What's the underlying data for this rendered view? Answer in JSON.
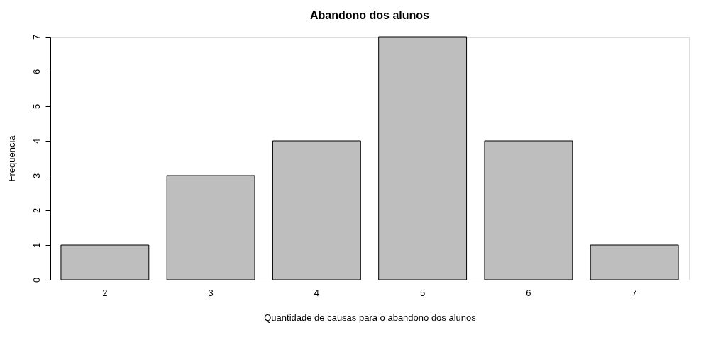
{
  "chart_data": {
    "type": "bar",
    "title": "Abandono dos alunos",
    "xlabel": "Quantidade de causas para o abandono dos alunos",
    "ylabel": "Frequência",
    "categories": [
      "2",
      "3",
      "4",
      "5",
      "6",
      "7"
    ],
    "values": [
      1,
      3,
      4,
      7,
      4,
      1
    ],
    "color": "#bebebe",
    "ylim": [
      0,
      7
    ],
    "yticks": [
      0,
      1,
      2,
      3,
      4,
      5,
      6,
      7
    ],
    "grid": false
  }
}
